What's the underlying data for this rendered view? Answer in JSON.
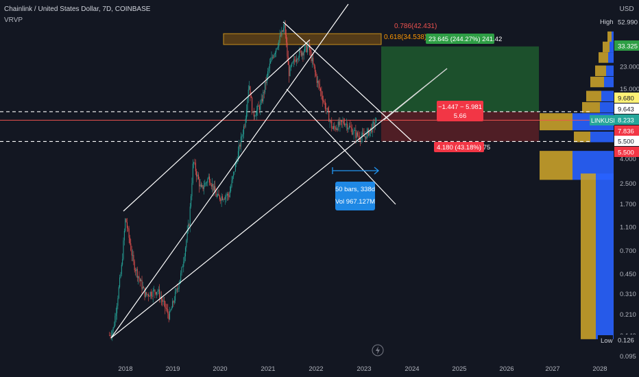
{
  "header": {
    "symbol_line": "Chainlink / United States Dollar, 7D, COINBASE",
    "indicator": "VRVP"
  },
  "axis": {
    "currency": "USD",
    "ticks": [
      "52.990",
      "33.325",
      "23.000",
      "15.000",
      "9.680",
      "9.643",
      "8.233",
      "7.836",
      "5.500",
      "4.000",
      "2.500",
      "1.700",
      "1.100",
      "0.700",
      "0.450",
      "0.310",
      "0.210",
      "0.140",
      "0.126",
      "0.095"
    ],
    "x_labels": [
      "2018",
      "2019",
      "2020",
      "2021",
      "2022",
      "2023",
      "2024",
      "2025",
      "2026",
      "2027",
      "2028"
    ],
    "high_label": "High",
    "high_value": "52.990",
    "low_label": "Low",
    "low_value": "0.126",
    "symbol_tag": "LINKUSD",
    "last_price": "8.233",
    "tag_target": "33.325",
    "tag_entry": "9.680",
    "tag_current_alt": "9.643",
    "tag_red": "7.836",
    "tag_stop_white": "5.500",
    "tag_stop_red": "5.500"
  },
  "annotations": {
    "fib_786": "0.786(42.431)",
    "fib_618": "0.618(34.538)",
    "target_box": "23.645 (244.27%) 241.42",
    "risk_line1": "−1.447 − 5.981",
    "risk_line2": "5.66",
    "stop_box": "4.180 (43.18%) 75",
    "measure_line1": "50 bars, 338d",
    "measure_line2": "Vol 967.127M"
  },
  "colors": {
    "background": "#131722",
    "up": "#26a69a",
    "down": "#ef5350",
    "profit_zone": "#1f5a2e",
    "loss_zone": "#5a2026",
    "fib_zone": "#8a5a10",
    "vol_up": "#2962ff",
    "vol_down": "#c8a02a",
    "measure": "#2196f3"
  },
  "chart_data": {
    "type": "candlestick",
    "title": "Chainlink / United States Dollar, 7D, COINBASE",
    "x_range": [
      "2017-09",
      "2028-03"
    ],
    "y_scale": "log",
    "y_range": [
      0.095,
      60
    ],
    "series": [
      {
        "name": "LINKUSD",
        "points": [
          [
            "2017-09",
            0.14
          ],
          [
            "2017-10",
            0.16
          ],
          [
            "2017-12",
            0.5
          ],
          [
            "2018-01",
            1.3
          ],
          [
            "2018-03",
            0.55
          ],
          [
            "2018-06",
            0.3
          ],
          [
            "2018-09",
            0.33
          ],
          [
            "2018-12",
            0.2
          ],
          [
            "2019-03",
            0.45
          ],
          [
            "2019-05",
            1.2
          ],
          [
            "2019-06",
            3.8
          ],
          [
            "2019-08",
            2.2
          ],
          [
            "2019-10",
            2.8
          ],
          [
            "2019-12",
            1.9
          ],
          [
            "2020-03",
            2.0
          ],
          [
            "2020-05",
            4.0
          ],
          [
            "2020-07",
            8.0
          ],
          [
            "2020-08",
            17.0
          ],
          [
            "2020-09",
            9.0
          ],
          [
            "2020-11",
            11.0
          ],
          [
            "2021-01",
            22.0
          ],
          [
            "2021-02",
            28.0
          ],
          [
            "2021-05",
            49.0
          ],
          [
            "2021-06",
            20.0
          ],
          [
            "2021-08",
            28.0
          ],
          [
            "2021-11",
            33.0
          ],
          [
            "2022-01",
            18.0
          ],
          [
            "2022-05",
            7.0
          ],
          [
            "2022-08",
            8.0
          ],
          [
            "2022-11",
            6.2
          ],
          [
            "2023-01",
            6.0
          ],
          [
            "2023-03",
            7.2
          ],
          [
            "2023-04",
            8.23
          ]
        ]
      }
    ],
    "levels": [
      {
        "label": "fib 0.786",
        "value": 42.431
      },
      {
        "label": "fib 0.618",
        "value": 34.538
      },
      {
        "label": "target",
        "value": 33.325
      },
      {
        "label": "entry",
        "value": 9.68
      },
      {
        "label": "stop",
        "value": 5.5
      }
    ],
    "volume_profile": [
      {
        "price": 40.0,
        "up": 3,
        "down": 6
      },
      {
        "price": 33.0,
        "up": 6,
        "down": 10
      },
      {
        "price": 27.0,
        "up": 8,
        "down": 14
      },
      {
        "price": 21.0,
        "up": 11,
        "down": 16
      },
      {
        "price": 17.0,
        "up": 14,
        "down": 20
      },
      {
        "price": 13.0,
        "up": 18,
        "down": 22
      },
      {
        "price": 10.5,
        "up": 20,
        "down": 26
      },
      {
        "price": 8.0,
        "up": 60,
        "down": 48
      },
      {
        "price": 6.0,
        "up": 34,
        "down": 24
      },
      {
        "price": 3.5,
        "up": 60,
        "down": 48
      },
      {
        "price": 0.8,
        "up": 26,
        "down": 22
      }
    ],
    "drawings": [
      {
        "type": "ascending channel",
        "from": [
          "2018-01",
          1.4
        ],
        "to": [
          "2021-05",
          60
        ]
      },
      {
        "type": "descending channel",
        "from": [
          "2021-05",
          60
        ],
        "to": [
          "2023-06",
          1.8
        ]
      },
      {
        "type": "long position",
        "entry": 9.68,
        "target": 33.325,
        "stop": 5.5
      }
    ]
  }
}
